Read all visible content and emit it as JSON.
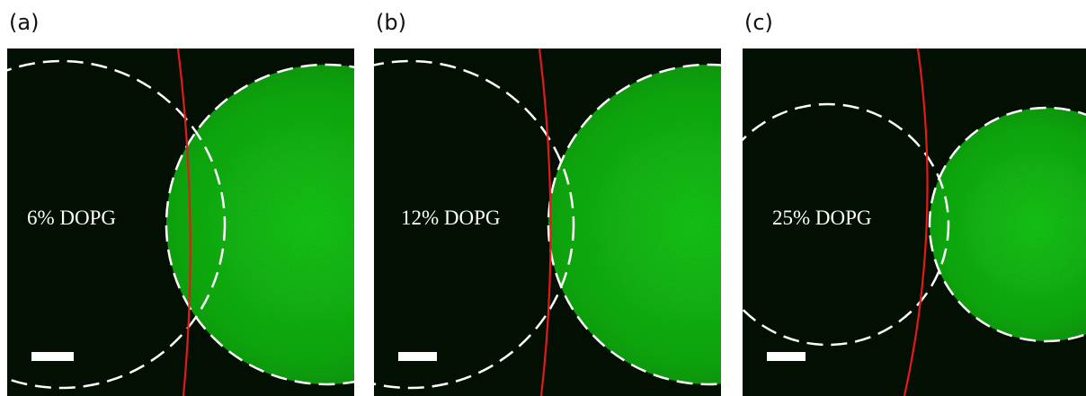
{
  "panels": [
    {
      "label": "(a)",
      "text": "6% DOPG"
    },
    {
      "label": "(b)",
      "text": "12% DOPG"
    },
    {
      "label": "(c)",
      "text": "25% DOPG"
    }
  ]
}
